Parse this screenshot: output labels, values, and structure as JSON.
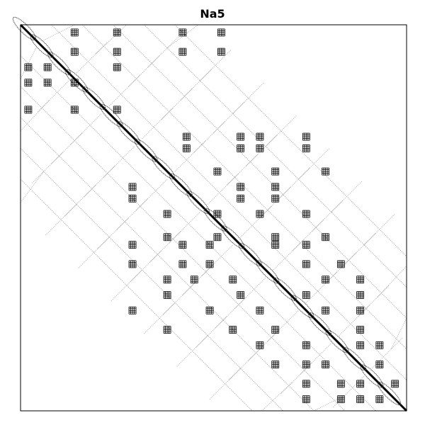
{
  "chart_data": {
    "type": "heatmap",
    "subtype": "sparsity-pattern",
    "title": "Na5",
    "xlabel": "",
    "ylabel": "",
    "grid": false,
    "axis_ticks": false,
    "marker_color": "#000000",
    "background_color": "#ffffff",
    "bands": [
      {
        "offset": 0,
        "halfwidth": 0.018,
        "density": "solid"
      },
      {
        "offset": 0.02,
        "halfwidth": 0.05,
        "density": "dense"
      },
      {
        "offset": 0.08,
        "halfwidth": 0.0,
        "density": "line"
      },
      {
        "offset": 0.16,
        "halfwidth": 0.0,
        "density": "line"
      },
      {
        "offset": 0.24,
        "halfwidth": 0.0,
        "density": "line"
      },
      {
        "offset": 0.32,
        "halfwidth": 0.0,
        "density": "line"
      },
      {
        "offset": 0.4,
        "halfwidth": 0.0,
        "density": "line"
      }
    ],
    "block_clusters": [
      [
        0.02,
        0.14
      ],
      [
        0.02,
        0.25
      ],
      [
        0.02,
        0.42
      ],
      [
        0.02,
        0.52
      ],
      [
        0.07,
        0.14
      ],
      [
        0.07,
        0.25
      ],
      [
        0.07,
        0.42
      ],
      [
        0.07,
        0.52
      ],
      [
        0.11,
        0.02
      ],
      [
        0.11,
        0.07
      ],
      [
        0.11,
        0.25
      ],
      [
        0.15,
        0.02
      ],
      [
        0.15,
        0.07
      ],
      [
        0.15,
        0.14
      ],
      [
        0.22,
        0.02
      ],
      [
        0.22,
        0.14
      ],
      [
        0.22,
        0.25
      ],
      [
        0.29,
        0.43
      ],
      [
        0.29,
        0.57
      ],
      [
        0.29,
        0.62
      ],
      [
        0.29,
        0.74
      ],
      [
        0.32,
        0.43
      ],
      [
        0.32,
        0.57
      ],
      [
        0.32,
        0.62
      ],
      [
        0.32,
        0.74
      ],
      [
        0.38,
        0.51
      ],
      [
        0.38,
        0.66
      ],
      [
        0.38,
        0.79
      ],
      [
        0.42,
        0.29
      ],
      [
        0.42,
        0.57
      ],
      [
        0.42,
        0.66
      ],
      [
        0.45,
        0.29
      ],
      [
        0.45,
        0.57
      ],
      [
        0.45,
        0.66
      ],
      [
        0.49,
        0.38
      ],
      [
        0.49,
        0.51
      ],
      [
        0.49,
        0.62
      ],
      [
        0.49,
        0.74
      ],
      [
        0.55,
        0.38
      ],
      [
        0.55,
        0.51
      ],
      [
        0.55,
        0.66
      ],
      [
        0.55,
        0.79
      ],
      [
        0.57,
        0.29
      ],
      [
        0.57,
        0.42
      ],
      [
        0.57,
        0.49
      ],
      [
        0.57,
        0.66
      ],
      [
        0.57,
        0.74
      ],
      [
        0.62,
        0.29
      ],
      [
        0.62,
        0.42
      ],
      [
        0.62,
        0.49
      ],
      [
        0.62,
        0.74
      ],
      [
        0.62,
        0.83
      ],
      [
        0.66,
        0.38
      ],
      [
        0.66,
        0.45
      ],
      [
        0.66,
        0.55
      ],
      [
        0.66,
        0.79
      ],
      [
        0.66,
        0.88
      ],
      [
        0.7,
        0.38
      ],
      [
        0.7,
        0.57
      ],
      [
        0.7,
        0.74
      ],
      [
        0.7,
        0.88
      ],
      [
        0.74,
        0.29
      ],
      [
        0.74,
        0.49
      ],
      [
        0.74,
        0.62
      ],
      [
        0.74,
        0.79
      ],
      [
        0.74,
        0.88
      ],
      [
        0.79,
        0.38
      ],
      [
        0.79,
        0.55
      ],
      [
        0.79,
        0.66
      ],
      [
        0.79,
        0.88
      ],
      [
        0.83,
        0.62
      ],
      [
        0.83,
        0.74
      ],
      [
        0.83,
        0.88
      ],
      [
        0.83,
        0.93
      ],
      [
        0.88,
        0.66
      ],
      [
        0.88,
        0.74
      ],
      [
        0.88,
        0.79
      ],
      [
        0.88,
        0.93
      ],
      [
        0.93,
        0.74
      ],
      [
        0.93,
        0.83
      ],
      [
        0.93,
        0.88
      ],
      [
        0.93,
        0.97
      ],
      [
        0.97,
        0.74
      ],
      [
        0.97,
        0.83
      ],
      [
        0.97,
        0.88
      ],
      [
        0.97,
        0.93
      ]
    ]
  }
}
